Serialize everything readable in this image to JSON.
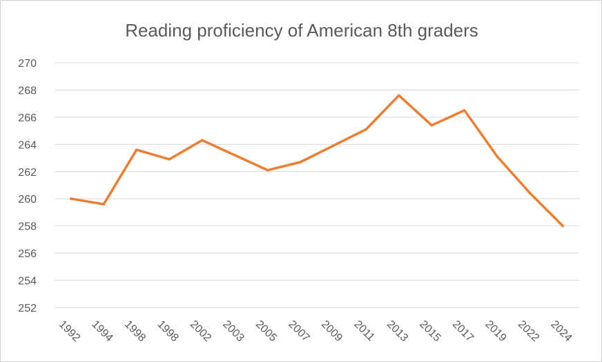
{
  "chart_data": {
    "type": "line",
    "title": "Reading proficiency of American 8th graders",
    "xlabel": "",
    "ylabel": "",
    "categories": [
      "1992",
      "1994",
      "1998",
      "1998",
      "2002",
      "2003",
      "2005",
      "2007",
      "2009",
      "2011",
      "2013",
      "2015",
      "2017",
      "2019",
      "2022",
      "2024"
    ],
    "series": [
      {
        "values": [
          260.0,
          259.6,
          263.6,
          262.9,
          264.3,
          263.2,
          262.1,
          262.7,
          263.9,
          265.1,
          267.6,
          265.4,
          266.5,
          263.1,
          260.4,
          258.0
        ],
        "color": "#ed7d31"
      }
    ],
    "ylim": [
      252,
      270
    ],
    "yticks": [
      "270",
      "268",
      "266",
      "264",
      "262",
      "260",
      "258",
      "256",
      "254",
      "252"
    ],
    "grid": true,
    "legend": "none"
  }
}
